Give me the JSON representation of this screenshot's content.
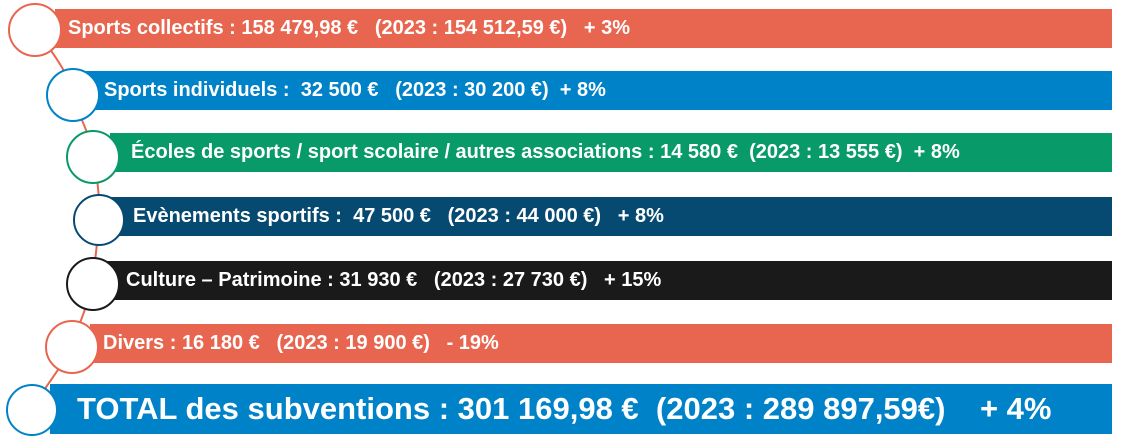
{
  "rows": [
    {
      "label": "Sports collectifs",
      "sep": " : ",
      "amount": "158 479,98 €",
      "gap1": "   ",
      "previous": "(2023 : 154 512,59 €)",
      "gap2": "   ",
      "change": "+ 3%",
      "color": "#e8664f"
    },
    {
      "label": "Sports individuels",
      "sep": " :  ",
      "amount": "32 500 €",
      "gap1": "   ",
      "previous": "(2023 : 30 200 €)",
      "gap2": "  ",
      "change": "+ 8%",
      "color": "#0082c8"
    },
    {
      "label": "Écoles de sports / sport scolaire / autres associations",
      "sep": " : ",
      "amount": "14 580 €",
      "gap1": "  ",
      "previous": "(2023 : 13 555 €)",
      "gap2": "  ",
      "change": "+ 8%",
      "color": "#089a68"
    },
    {
      "label": "Evènements sportifs",
      "sep": " :  ",
      "amount": "47 500 €",
      "gap1": "   ",
      "previous": "(2023 : 44 000 €)",
      "gap2": "   ",
      "change": "+ 8%",
      "color": "#064a72"
    },
    {
      "label": "Culture – Patrimoine",
      "sep": " : ",
      "amount": "31 930 €",
      "gap1": "   ",
      "previous": "(2023 : 27 730 €)",
      "gap2": "   ",
      "change": "+ 15%",
      "color": "#1a1a1a"
    },
    {
      "label": "Divers",
      "sep": " : ",
      "amount": "16 180 €",
      "gap1": "   ",
      "previous": "(2023 : 19 900 €)",
      "gap2": "   ",
      "change": "- 19%",
      "color": "#e8664f"
    }
  ],
  "total": {
    "label": "TOTAL des subventions",
    "sep": " : ",
    "amount": "301 169,98 €",
    "gap1": "  ",
    "previous": "(2023 : 289 897,59€)",
    "gap2": "    ",
    "change": "+ 4%",
    "color": "#0082c8"
  }
}
